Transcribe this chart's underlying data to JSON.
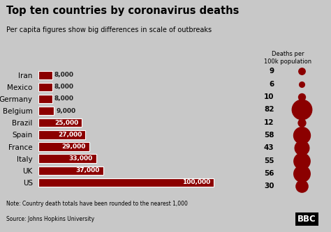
{
  "title": "Top ten countries by coronavirus deaths",
  "subtitle": "Per capita figures show big differences in scale of outbreaks",
  "countries": [
    "US",
    "UK",
    "Italy",
    "France",
    "Spain",
    "Brazil",
    "Belgium",
    "Germany",
    "Mexico",
    "Iran"
  ],
  "deaths": [
    100000,
    37000,
    33000,
    29000,
    27000,
    25000,
    9000,
    8000,
    8000,
    8000
  ],
  "death_labels": [
    "100,000",
    "37,000",
    "33,000",
    "29,000",
    "27,000",
    "25,000",
    "9,000",
    "8,000",
    "8,000",
    "8,000"
  ],
  "per_capita": [
    30,
    56,
    55,
    43,
    58,
    12,
    82,
    10,
    6,
    9
  ],
  "bar_color": "#8B0000",
  "dot_color": "#8B0000",
  "bg_color": "#c8c8c8",
  "note": "Note: Country death totals have been rounded to the nearest 1,000",
  "source": "Source: Johns Hopkins University",
  "per_capita_label": "Deaths per\n100k population"
}
